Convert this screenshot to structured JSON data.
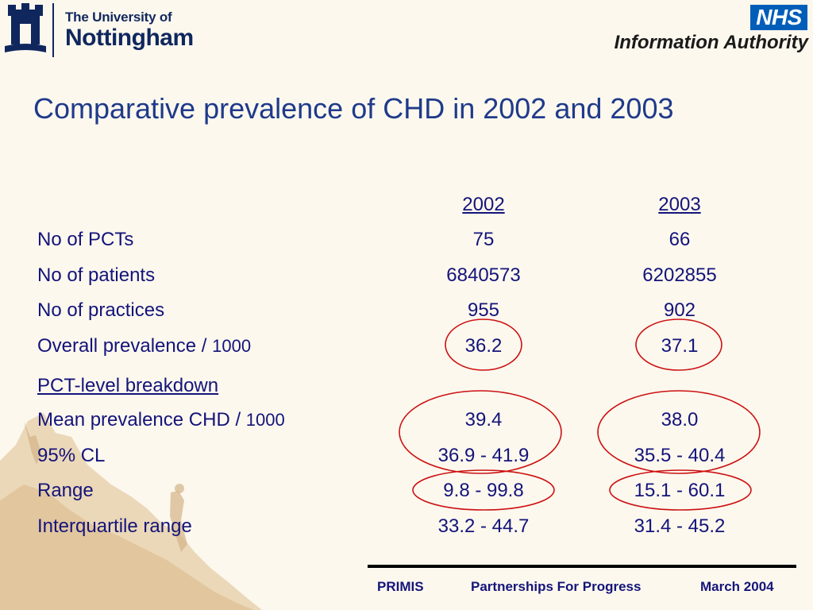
{
  "header": {
    "university_line1": "The University of",
    "university_line2": "Nottingham",
    "nhs_badge": "NHS",
    "nhs_subtitle": "Information Authority"
  },
  "title": "Comparative prevalence of CHD in 2002 and 2003",
  "columns": [
    "2002",
    "2003"
  ],
  "rows": [
    {
      "label": "No of PCTs",
      "values": [
        "75",
        "66"
      ]
    },
    {
      "label": "No of patients",
      "values": [
        "6840573",
        "6202855"
      ]
    },
    {
      "label": "No of practices",
      "values": [
        "955",
        "902"
      ]
    },
    {
      "label": "Overall prevalence / ",
      "label_num": "1000",
      "values": [
        "36.2",
        "37.1"
      ]
    }
  ],
  "section_heading": "PCT-level breakdown",
  "breakdown_rows": [
    {
      "label": "Mean prevalence CHD / ",
      "label_num": "1000",
      "values": [
        "39.4",
        "38.0"
      ]
    },
    {
      "label": "95% CL",
      "values": [
        "36.9 - 41.9",
        "35.5 - 40.4"
      ]
    },
    {
      "label": "Range",
      "values": [
        "9.8 - 99.8",
        "15.1 - 60.1"
      ]
    },
    {
      "label": "Interquartile range",
      "values": [
        "33.2 - 44.7",
        "31.4 - 45.2"
      ]
    }
  ],
  "footer": {
    "left": "PRIMIS",
    "center": "Partnerships For Progress",
    "right": "March 2004"
  },
  "colors": {
    "title": "#1f3a8a",
    "text": "#14147a",
    "circle": "#cc1111",
    "nhs_blue": "#005eb8"
  }
}
